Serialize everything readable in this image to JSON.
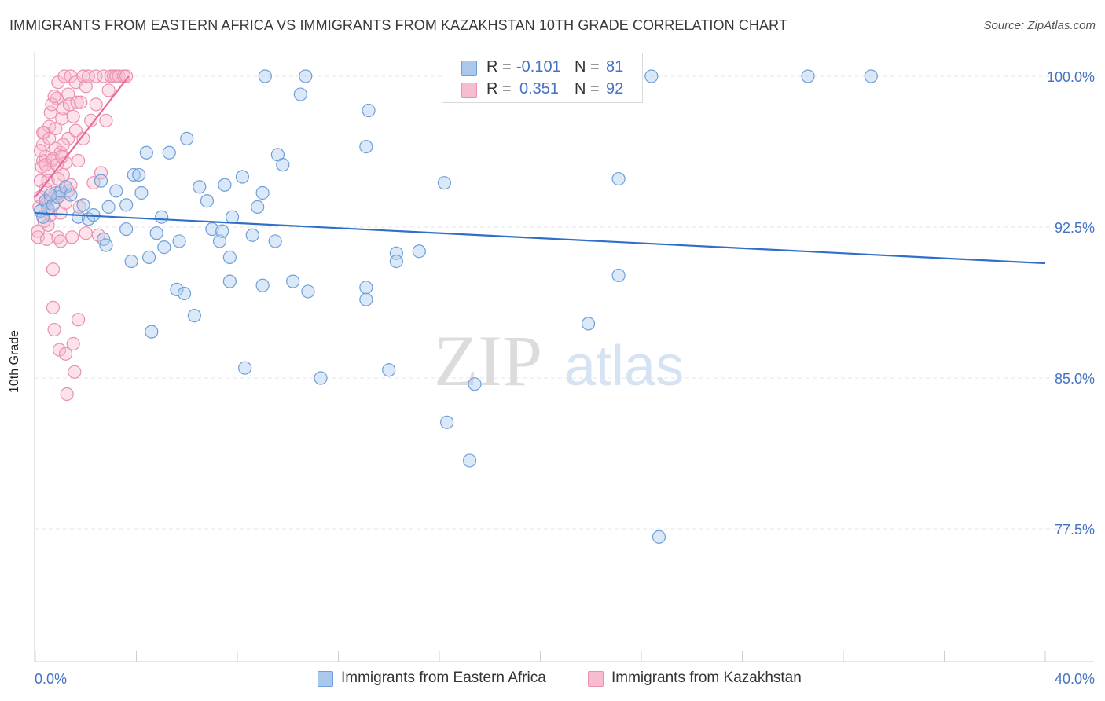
{
  "header": {
    "title": "IMMIGRANTS FROM EASTERN AFRICA VS IMMIGRANTS FROM KAZAKHSTAN 10TH GRADE CORRELATION CHART",
    "source": "Source: ZipAtlas.com"
  },
  "watermark": {
    "zip": "ZIP",
    "atlas": "atlas"
  },
  "legend_top": {
    "rows": [
      {
        "r_label": "R =",
        "r_value": "-0.101",
        "n_label": "N =",
        "n_value": "81"
      },
      {
        "r_label": "R =",
        "r_value": "0.351",
        "n_label": "N =",
        "n_value": "92"
      }
    ]
  },
  "legend_bottom": {
    "items": [
      {
        "label": "Immigrants from Eastern Africa"
      },
      {
        "label": "Immigrants from Kazakhstan"
      }
    ]
  },
  "chart_data": {
    "type": "scatter",
    "title": "IMMIGRANTS FROM EASTERN AFRICA VS IMMIGRANTS FROM KAZAKHSTAN 10TH GRADE CORRELATION CHART",
    "xlabel": "",
    "ylabel": "10th Grade",
    "xlim": [
      0,
      40
    ],
    "ylim": [
      70.5,
      100.8
    ],
    "x_tick_labels": [
      "0.0%",
      "40.0%"
    ],
    "y_ticks": [
      100.0,
      92.5,
      85.0,
      77.5
    ],
    "y_tick_labels": [
      "100.0%",
      "92.5%",
      "85.0%",
      "77.5%"
    ],
    "grid": true,
    "legend_position": "top-center",
    "colors": {
      "blue_fill": "#aac8ee",
      "blue_stroke": "#6f9fd8",
      "blue_line": "#2f6fca",
      "pink_fill": "#f7bcd0",
      "pink_stroke": "#ea8fb0",
      "pink_line": "#e8699a",
      "tick_text": "#4472c4",
      "grid": "#e6e6e6"
    },
    "series": [
      {
        "name": "Immigrants from Eastern Africa",
        "color": "blue",
        "trend": {
          "x0": 0.0,
          "y0": 93.2,
          "x1": 40.0,
          "y1": 90.7
        },
        "points": [
          [
            0.2,
            93.3
          ],
          [
            0.4,
            93.8
          ],
          [
            0.5,
            93.4
          ],
          [
            0.7,
            93.6
          ],
          [
            0.9,
            94.0
          ],
          [
            1.0,
            94.3
          ],
          [
            1.2,
            94.5
          ],
          [
            1.4,
            94.1
          ],
          [
            1.7,
            93.0
          ],
          [
            1.9,
            93.6
          ],
          [
            2.1,
            92.9
          ],
          [
            2.3,
            93.1
          ],
          [
            2.6,
            94.8
          ],
          [
            2.9,
            93.5
          ],
          [
            3.2,
            94.3
          ],
          [
            3.6,
            93.6
          ],
          [
            2.7,
            91.9
          ],
          [
            2.8,
            91.6
          ],
          [
            3.6,
            92.4
          ],
          [
            3.9,
            95.1
          ],
          [
            4.1,
            95.1
          ],
          [
            4.2,
            94.2
          ],
          [
            4.4,
            96.2
          ],
          [
            3.8,
            90.8
          ],
          [
            4.5,
            91.0
          ],
          [
            4.8,
            92.2
          ],
          [
            5.0,
            93.0
          ],
          [
            5.1,
            91.5
          ],
          [
            5.3,
            96.2
          ],
          [
            5.6,
            89.4
          ],
          [
            5.9,
            89.2
          ],
          [
            6.0,
            96.9
          ],
          [
            5.7,
            91.8
          ],
          [
            6.5,
            94.5
          ],
          [
            6.8,
            93.8
          ],
          [
            7.0,
            92.4
          ],
          [
            7.3,
            91.8
          ],
          [
            7.4,
            92.3
          ],
          [
            7.5,
            94.6
          ],
          [
            7.7,
            89.8
          ],
          [
            7.7,
            91.0
          ],
          [
            7.8,
            93.0
          ],
          [
            8.2,
            95.0
          ],
          [
            8.6,
            92.1
          ],
          [
            8.8,
            93.5
          ],
          [
            9.0,
            94.2
          ],
          [
            9.0,
            89.6
          ],
          [
            9.1,
            100.0
          ],
          [
            9.5,
            91.8
          ],
          [
            9.6,
            96.1
          ],
          [
            9.8,
            95.6
          ],
          [
            10.2,
            89.8
          ],
          [
            10.5,
            99.1
          ],
          [
            10.8,
            89.3
          ],
          [
            10.7,
            100.0
          ],
          [
            6.3,
            88.1
          ],
          [
            4.6,
            87.3
          ],
          [
            8.3,
            85.5
          ],
          [
            11.3,
            85.0
          ],
          [
            13.1,
            88.9
          ],
          [
            13.1,
            89.5
          ],
          [
            13.1,
            96.5
          ],
          [
            13.2,
            98.3
          ],
          [
            14.0,
            85.4
          ],
          [
            14.3,
            91.2
          ],
          [
            14.3,
            90.8
          ],
          [
            15.2,
            91.3
          ],
          [
            16.2,
            94.7
          ],
          [
            16.3,
            82.8
          ],
          [
            17.0,
            100.0
          ],
          [
            17.2,
            80.9
          ],
          [
            17.4,
            84.7
          ],
          [
            21.9,
            87.7
          ],
          [
            23.1,
            94.9
          ],
          [
            23.1,
            90.1
          ],
          [
            24.4,
            100.0
          ],
          [
            24.7,
            77.1
          ],
          [
            30.6,
            100.0
          ],
          [
            33.1,
            100.0
          ],
          [
            0.3,
            93.0
          ],
          [
            0.6,
            94.1
          ]
        ]
      },
      {
        "name": "Immigrants from Kazakhstan",
        "color": "pink",
        "trend": {
          "x0": 0.0,
          "y0": 94.0,
          "x1": 3.7,
          "y1": 100.0
        },
        "points": [
          [
            0.1,
            92.3
          ],
          [
            0.1,
            92.0
          ],
          [
            0.15,
            93.5
          ],
          [
            0.2,
            94.0
          ],
          [
            0.2,
            94.8
          ],
          [
            0.25,
            95.5
          ],
          [
            0.3,
            95.8
          ],
          [
            0.3,
            96.6
          ],
          [
            0.35,
            97.2
          ],
          [
            0.4,
            96.0
          ],
          [
            0.4,
            94.4
          ],
          [
            0.45,
            93.7
          ],
          [
            0.5,
            95.3
          ],
          [
            0.5,
            92.6
          ],
          [
            0.55,
            97.5
          ],
          [
            0.6,
            98.2
          ],
          [
            0.6,
            93.1
          ],
          [
            0.65,
            95.8
          ],
          [
            0.7,
            90.4
          ],
          [
            0.7,
            88.5
          ],
          [
            0.75,
            87.4
          ],
          [
            0.8,
            94.2
          ],
          [
            0.8,
            96.4
          ],
          [
            0.85,
            98.9
          ],
          [
            0.9,
            99.7
          ],
          [
            0.9,
            92.0
          ],
          [
            0.95,
            86.4
          ],
          [
            1.0,
            91.8
          ],
          [
            1.0,
            96.2
          ],
          [
            1.05,
            97.9
          ],
          [
            1.1,
            95.1
          ],
          [
            1.1,
            98.4
          ],
          [
            1.15,
            100.0
          ],
          [
            1.2,
            93.7
          ],
          [
            1.2,
            86.2
          ],
          [
            1.25,
            84.2
          ],
          [
            1.3,
            96.9
          ],
          [
            1.3,
            99.1
          ],
          [
            1.35,
            98.6
          ],
          [
            1.4,
            94.6
          ],
          [
            1.4,
            100.0
          ],
          [
            1.45,
            92.0
          ],
          [
            1.5,
            98.0
          ],
          [
            1.5,
            86.7
          ],
          [
            1.55,
            85.3
          ],
          [
            1.6,
            97.3
          ],
          [
            1.6,
            99.7
          ],
          [
            1.65,
            98.7
          ],
          [
            1.7,
            95.8
          ],
          [
            1.7,
            87.9
          ],
          [
            1.75,
            93.5
          ],
          [
            1.8,
            98.7
          ],
          [
            1.9,
            100.0
          ],
          [
            1.9,
            96.9
          ],
          [
            2.0,
            99.5
          ],
          [
            2.0,
            92.2
          ],
          [
            2.1,
            100.0
          ],
          [
            2.2,
            97.8
          ],
          [
            2.3,
            94.7
          ],
          [
            2.4,
            98.6
          ],
          [
            2.4,
            100.0
          ],
          [
            2.5,
            92.1
          ],
          [
            2.6,
            95.2
          ],
          [
            2.7,
            100.0
          ],
          [
            2.8,
            97.8
          ],
          [
            2.9,
            99.3
          ],
          [
            3.0,
            100.0
          ],
          [
            3.1,
            100.0
          ],
          [
            3.2,
            100.0
          ],
          [
            3.3,
            100.0
          ],
          [
            3.5,
            100.0
          ],
          [
            3.6,
            100.0
          ],
          [
            0.2,
            96.3
          ],
          [
            0.3,
            97.2
          ],
          [
            0.4,
            95.6
          ],
          [
            0.5,
            94.8
          ],
          [
            0.6,
            93.9
          ],
          [
            0.7,
            95.9
          ],
          [
            0.8,
            97.4
          ],
          [
            0.9,
            94.9
          ],
          [
            1.0,
            93.2
          ],
          [
            1.1,
            96.6
          ],
          [
            1.2,
            95.7
          ],
          [
            1.3,
            94.3
          ],
          [
            0.35,
            92.8
          ],
          [
            0.45,
            91.9
          ],
          [
            0.55,
            96.9
          ],
          [
            0.65,
            98.6
          ],
          [
            0.75,
            99.0
          ],
          [
            0.85,
            95.6
          ],
          [
            0.95,
            94.2
          ],
          [
            1.05,
            96.0
          ]
        ]
      }
    ]
  }
}
